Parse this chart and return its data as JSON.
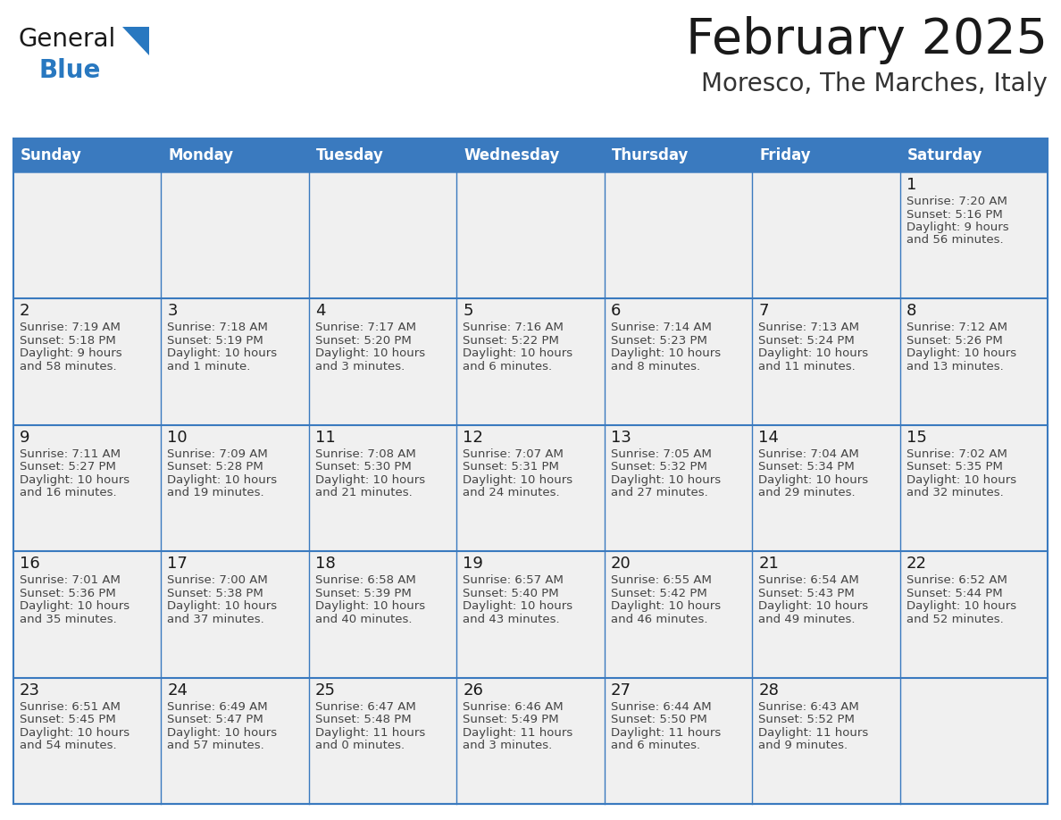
{
  "title": "February 2025",
  "subtitle": "Moresco, The Marches, Italy",
  "days_of_week": [
    "Sunday",
    "Monday",
    "Tuesday",
    "Wednesday",
    "Thursday",
    "Friday",
    "Saturday"
  ],
  "header_bg": "#3a7abf",
  "header_text": "#ffffff",
  "cell_bg": "#f0f0f0",
  "border_color": "#3a7abf",
  "day_number_color": "#1a1a1a",
  "info_text_color": "#444444",
  "title_color": "#1a1a1a",
  "subtitle_color": "#333333",
  "logo_general_color": "#1a1a1a",
  "logo_blue_color": "#2878c0",
  "calendar_data": [
    [
      null,
      null,
      null,
      null,
      null,
      null,
      {
        "day": 1,
        "sunrise": "7:20 AM",
        "sunset": "5:16 PM",
        "daylight_line1": "Daylight: 9 hours",
        "daylight_line2": "and 56 minutes."
      }
    ],
    [
      {
        "day": 2,
        "sunrise": "7:19 AM",
        "sunset": "5:18 PM",
        "daylight_line1": "Daylight: 9 hours",
        "daylight_line2": "and 58 minutes."
      },
      {
        "day": 3,
        "sunrise": "7:18 AM",
        "sunset": "5:19 PM",
        "daylight_line1": "Daylight: 10 hours",
        "daylight_line2": "and 1 minute."
      },
      {
        "day": 4,
        "sunrise": "7:17 AM",
        "sunset": "5:20 PM",
        "daylight_line1": "Daylight: 10 hours",
        "daylight_line2": "and 3 minutes."
      },
      {
        "day": 5,
        "sunrise": "7:16 AM",
        "sunset": "5:22 PM",
        "daylight_line1": "Daylight: 10 hours",
        "daylight_line2": "and 6 minutes."
      },
      {
        "day": 6,
        "sunrise": "7:14 AM",
        "sunset": "5:23 PM",
        "daylight_line1": "Daylight: 10 hours",
        "daylight_line2": "and 8 minutes."
      },
      {
        "day": 7,
        "sunrise": "7:13 AM",
        "sunset": "5:24 PM",
        "daylight_line1": "Daylight: 10 hours",
        "daylight_line2": "and 11 minutes."
      },
      {
        "day": 8,
        "sunrise": "7:12 AM",
        "sunset": "5:26 PM",
        "daylight_line1": "Daylight: 10 hours",
        "daylight_line2": "and 13 minutes."
      }
    ],
    [
      {
        "day": 9,
        "sunrise": "7:11 AM",
        "sunset": "5:27 PM",
        "daylight_line1": "Daylight: 10 hours",
        "daylight_line2": "and 16 minutes."
      },
      {
        "day": 10,
        "sunrise": "7:09 AM",
        "sunset": "5:28 PM",
        "daylight_line1": "Daylight: 10 hours",
        "daylight_line2": "and 19 minutes."
      },
      {
        "day": 11,
        "sunrise": "7:08 AM",
        "sunset": "5:30 PM",
        "daylight_line1": "Daylight: 10 hours",
        "daylight_line2": "and 21 minutes."
      },
      {
        "day": 12,
        "sunrise": "7:07 AM",
        "sunset": "5:31 PM",
        "daylight_line1": "Daylight: 10 hours",
        "daylight_line2": "and 24 minutes."
      },
      {
        "day": 13,
        "sunrise": "7:05 AM",
        "sunset": "5:32 PM",
        "daylight_line1": "Daylight: 10 hours",
        "daylight_line2": "and 27 minutes."
      },
      {
        "day": 14,
        "sunrise": "7:04 AM",
        "sunset": "5:34 PM",
        "daylight_line1": "Daylight: 10 hours",
        "daylight_line2": "and 29 minutes."
      },
      {
        "day": 15,
        "sunrise": "7:02 AM",
        "sunset": "5:35 PM",
        "daylight_line1": "Daylight: 10 hours",
        "daylight_line2": "and 32 minutes."
      }
    ],
    [
      {
        "day": 16,
        "sunrise": "7:01 AM",
        "sunset": "5:36 PM",
        "daylight_line1": "Daylight: 10 hours",
        "daylight_line2": "and 35 minutes."
      },
      {
        "day": 17,
        "sunrise": "7:00 AM",
        "sunset": "5:38 PM",
        "daylight_line1": "Daylight: 10 hours",
        "daylight_line2": "and 37 minutes."
      },
      {
        "day": 18,
        "sunrise": "6:58 AM",
        "sunset": "5:39 PM",
        "daylight_line1": "Daylight: 10 hours",
        "daylight_line2": "and 40 minutes."
      },
      {
        "day": 19,
        "sunrise": "6:57 AM",
        "sunset": "5:40 PM",
        "daylight_line1": "Daylight: 10 hours",
        "daylight_line2": "and 43 minutes."
      },
      {
        "day": 20,
        "sunrise": "6:55 AM",
        "sunset": "5:42 PM",
        "daylight_line1": "Daylight: 10 hours",
        "daylight_line2": "and 46 minutes."
      },
      {
        "day": 21,
        "sunrise": "6:54 AM",
        "sunset": "5:43 PM",
        "daylight_line1": "Daylight: 10 hours",
        "daylight_line2": "and 49 minutes."
      },
      {
        "day": 22,
        "sunrise": "6:52 AM",
        "sunset": "5:44 PM",
        "daylight_line1": "Daylight: 10 hours",
        "daylight_line2": "and 52 minutes."
      }
    ],
    [
      {
        "day": 23,
        "sunrise": "6:51 AM",
        "sunset": "5:45 PM",
        "daylight_line1": "Daylight: 10 hours",
        "daylight_line2": "and 54 minutes."
      },
      {
        "day": 24,
        "sunrise": "6:49 AM",
        "sunset": "5:47 PM",
        "daylight_line1": "Daylight: 10 hours",
        "daylight_line2": "and 57 minutes."
      },
      {
        "day": 25,
        "sunrise": "6:47 AM",
        "sunset": "5:48 PM",
        "daylight_line1": "Daylight: 11 hours",
        "daylight_line2": "and 0 minutes."
      },
      {
        "day": 26,
        "sunrise": "6:46 AM",
        "sunset": "5:49 PM",
        "daylight_line1": "Daylight: 11 hours",
        "daylight_line2": "and 3 minutes."
      },
      {
        "day": 27,
        "sunrise": "6:44 AM",
        "sunset": "5:50 PM",
        "daylight_line1": "Daylight: 11 hours",
        "daylight_line2": "and 6 minutes."
      },
      {
        "day": 28,
        "sunrise": "6:43 AM",
        "sunset": "5:52 PM",
        "daylight_line1": "Daylight: 11 hours",
        "daylight_line2": "and 9 minutes."
      },
      null
    ]
  ]
}
